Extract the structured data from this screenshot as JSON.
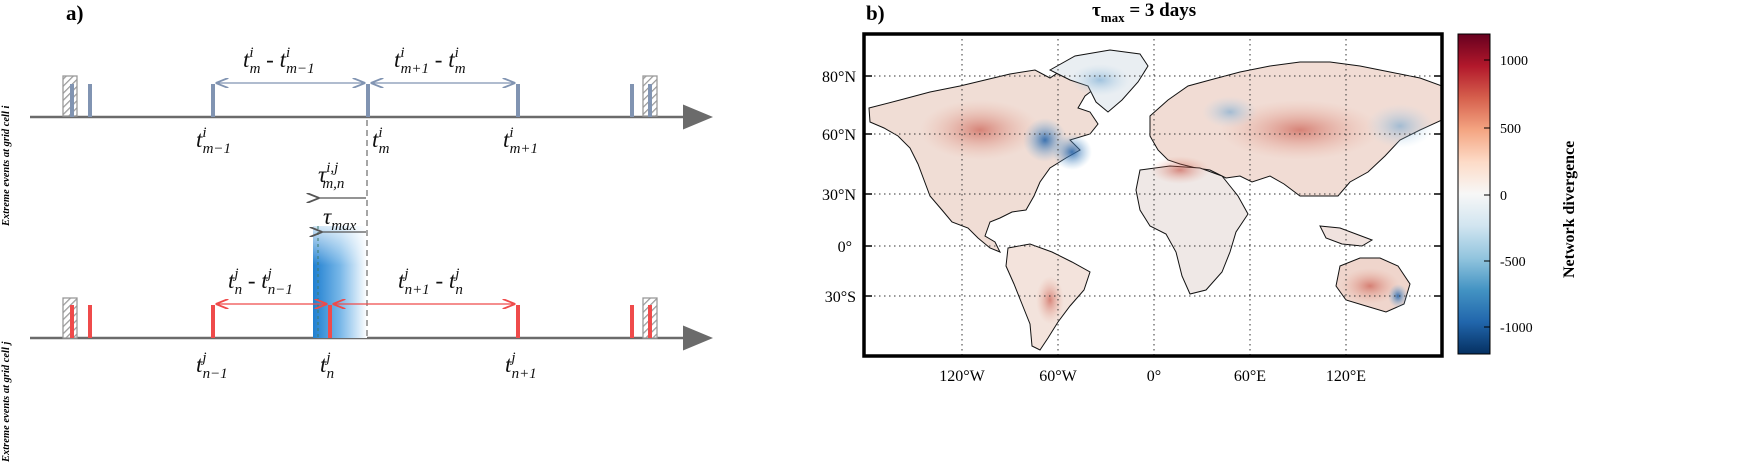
{
  "panel_a": {
    "label": "a)",
    "axis_i_label": "Extreme events at grid cell i",
    "axis_j_label": "Extreme events at grid cell j",
    "colors": {
      "top_series": "#8194b2",
      "bottom_series": "#ef4b4b",
      "axis": "#6b6b6b",
      "tau_fill": "#3c8fd0"
    },
    "top_interval_left": "t^i_m - t^i_{m-1}",
    "top_interval_right": "t^i_{m+1} - t^i_m",
    "top_event_labels": [
      "t^i_{m-1}",
      "t^i_m",
      "t^i_{m+1}"
    ],
    "bottom_interval_left": "t^j_n - t^j_{n-1}",
    "bottom_interval_right": "t^j_{n+1} - t^j_n",
    "bottom_event_labels": [
      "t^j_{n-1}",
      "t^j_n",
      "t^j_{n+1}"
    ],
    "tau_mn_label": "τ^{i,j}_{m,n}",
    "tau_max_label": "τ_max"
  },
  "panel_b": {
    "label": "b)",
    "title_prefix": "τ",
    "title_sub": "max",
    "title_suffix": " = 3 days",
    "lat_ticks": [
      "80°N",
      "60°N",
      "30°N",
      "0°",
      "30°S"
    ],
    "lon_ticks": [
      "120°W",
      "60°W",
      "0°",
      "60°E",
      "120°E"
    ],
    "colorbar_label": "Network divergence",
    "colorbar_ticks": [
      "1000",
      "500",
      "0",
      "-500",
      "-1000"
    ],
    "colorbar_colors": [
      "#67001f",
      "#b2182b",
      "#d6604d",
      "#f4a582",
      "#fddbc7",
      "#f7f7f7",
      "#d1e5f0",
      "#92c5de",
      "#4393c3",
      "#2166ac",
      "#053061"
    ]
  }
}
